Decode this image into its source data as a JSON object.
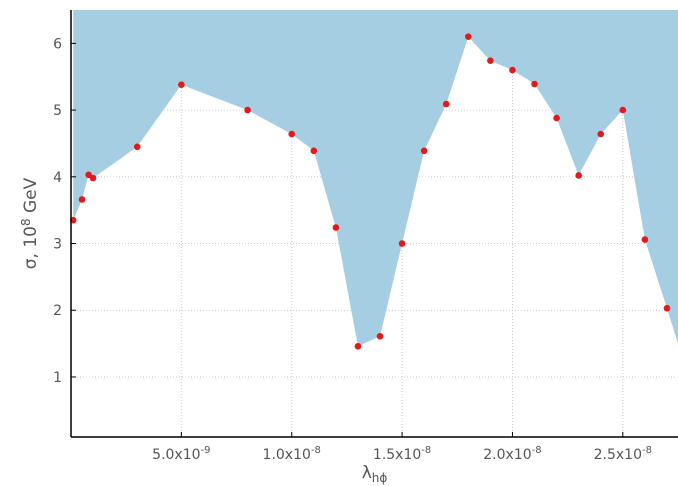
{
  "chart_data": {
    "type": "area",
    "xlabel": "λ",
    "xlabel_sub": "hϕ",
    "ylabel": "σ, 10",
    "ylabel_sup": "8",
    "ylabel_unit": " GeV",
    "xlim": [
      0,
      2.75e-08
    ],
    "ylim": [
      0.1,
      6.5
    ],
    "grid": true,
    "fill_color": "#a6cee3",
    "point_color": "#e31a1c",
    "x_ticks": [
      {
        "value": 5e-09,
        "mantissa": "5.0x10",
        "exp": "-9"
      },
      {
        "value": 1e-08,
        "mantissa": "1.0x10",
        "exp": "-8"
      },
      {
        "value": 1.5e-08,
        "mantissa": "1.5x10",
        "exp": "-8"
      },
      {
        "value": 2e-08,
        "mantissa": "2.0x10",
        "exp": "-8"
      },
      {
        "value": 2.5e-08,
        "mantissa": "2.5x10",
        "exp": "-8"
      }
    ],
    "y_ticks": [
      {
        "value": 1,
        "label": "1"
      },
      {
        "value": 2,
        "label": "2"
      },
      {
        "value": 3,
        "label": "3"
      },
      {
        "value": 4,
        "label": "4"
      },
      {
        "value": 5,
        "label": "5"
      },
      {
        "value": 6,
        "label": "6"
      }
    ],
    "series": [
      {
        "x": [
          1e-10,
          5e-10,
          8e-10,
          1e-09,
          3e-09,
          5e-09,
          8e-09,
          1e-08,
          1.1e-08,
          1.2e-08,
          1.3e-08,
          1.4e-08,
          1.5e-08,
          1.6e-08,
          1.7e-08,
          1.8e-08,
          1.9e-08,
          2e-08,
          2.1e-08,
          2.2e-08,
          2.3e-08,
          2.4e-08,
          2.5e-08,
          2.6e-08,
          2.7e-08
        ],
        "y": [
          3.35,
          3.66,
          4.03,
          3.98,
          4.45,
          5.38,
          5.0,
          4.64,
          4.39,
          3.24,
          1.46,
          1.61,
          3.0,
          4.39,
          5.09,
          6.1,
          5.74,
          5.6,
          5.39,
          4.88,
          4.02,
          4.64,
          5.0,
          3.06,
          2.03
        ],
        "line_end": {
          "x": 2.75e-08,
          "y": 1.5
        }
      }
    ]
  }
}
